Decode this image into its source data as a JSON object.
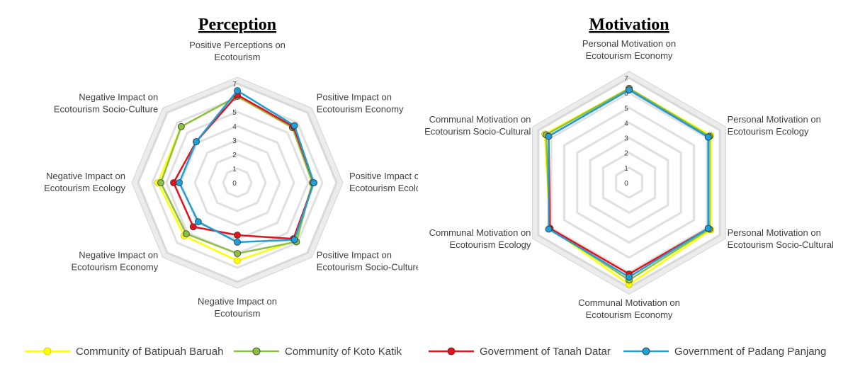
{
  "chart_data": [
    {
      "type": "radar",
      "title": "Perception",
      "categories": [
        [
          "Positive Perceptions on",
          "Ecotourism"
        ],
        [
          "Positive Impact on",
          "Ecotourism Economy"
        ],
        [
          "Positive Impact on",
          "Ecotourism Ecology"
        ],
        [
          "Positive Impact on",
          "Ecotourism Socio-Culture"
        ],
        [
          "Negative Impact on",
          "Ecotourism"
        ],
        [
          "Negative Impact on",
          "Ecotourism Economy"
        ],
        [
          "Negative Impact on",
          "Ecotourism Ecology"
        ],
        [
          "Negative Impact on",
          "Ecotourism Socio-Culture"
        ]
      ],
      "ylim": [
        0,
        7
      ],
      "yticks": [
        0,
        1,
        2,
        3,
        4,
        5,
        6,
        7
      ],
      "series": [
        {
          "name": "Community of Batipuah Baruah",
          "color": "#ffff00",
          "values": [
            6.1,
            5.5,
            5.3,
            5.8,
            5.5,
            5.3,
            5.6,
            5.6
          ]
        },
        {
          "name": "Community of Koto Katik",
          "color": "#8cc043",
          "values": [
            6.1,
            5.5,
            5.3,
            5.9,
            5.0,
            5.1,
            5.4,
            5.6
          ]
        },
        {
          "name": "Government of Tanah Datar",
          "color": "#e8101a",
          "values": [
            6.2,
            5.6,
            5.4,
            5.6,
            3.7,
            4.4,
            4.5,
            4.1
          ]
        },
        {
          "name": "Government of Padang Panjang",
          "color": "#1f9fd8",
          "values": [
            6.5,
            5.7,
            5.4,
            5.7,
            4.2,
            3.9,
            4.1,
            4.1
          ]
        }
      ]
    },
    {
      "type": "radar",
      "title": "Motivation",
      "categories": [
        [
          "Personal Motivation on",
          "Ecotourism Economy"
        ],
        [
          "Personal Motivation on",
          "Ecotourism Ecology"
        ],
        [
          "Personal Motivation on",
          "Ecotourism Socio-Cultural"
        ],
        [
          "Communal Motivation on",
          "Ecotourism Economy"
        ],
        [
          "Communal Motivation on",
          "Ecotourism Ecology"
        ],
        [
          "Communal Motivation on",
          "Ecotourism Socio-Cultural"
        ]
      ],
      "ylim": [
        0,
        7
      ],
      "yticks": [
        0,
        1,
        2,
        3,
        4,
        5,
        6,
        7
      ],
      "series": [
        {
          "name": "Community of Batipuah Baruah",
          "color": "#ffff00",
          "values": [
            6.3,
            6.3,
            6.3,
            6.8,
            6.1,
            6.5
          ]
        },
        {
          "name": "Community of Koto Katik",
          "color": "#8cc043",
          "values": [
            6.3,
            6.2,
            6.2,
            6.5,
            6.1,
            6.4
          ]
        },
        {
          "name": "Government of Tanah Datar",
          "color": "#e8101a",
          "values": [
            6.2,
            6.1,
            6.1,
            6.1,
            6.1,
            6.2
          ]
        },
        {
          "name": "Government of Padang Panjang",
          "color": "#1f9fd8",
          "values": [
            6.2,
            6.1,
            6.1,
            6.3,
            6.2,
            6.2
          ]
        }
      ]
    }
  ]
}
